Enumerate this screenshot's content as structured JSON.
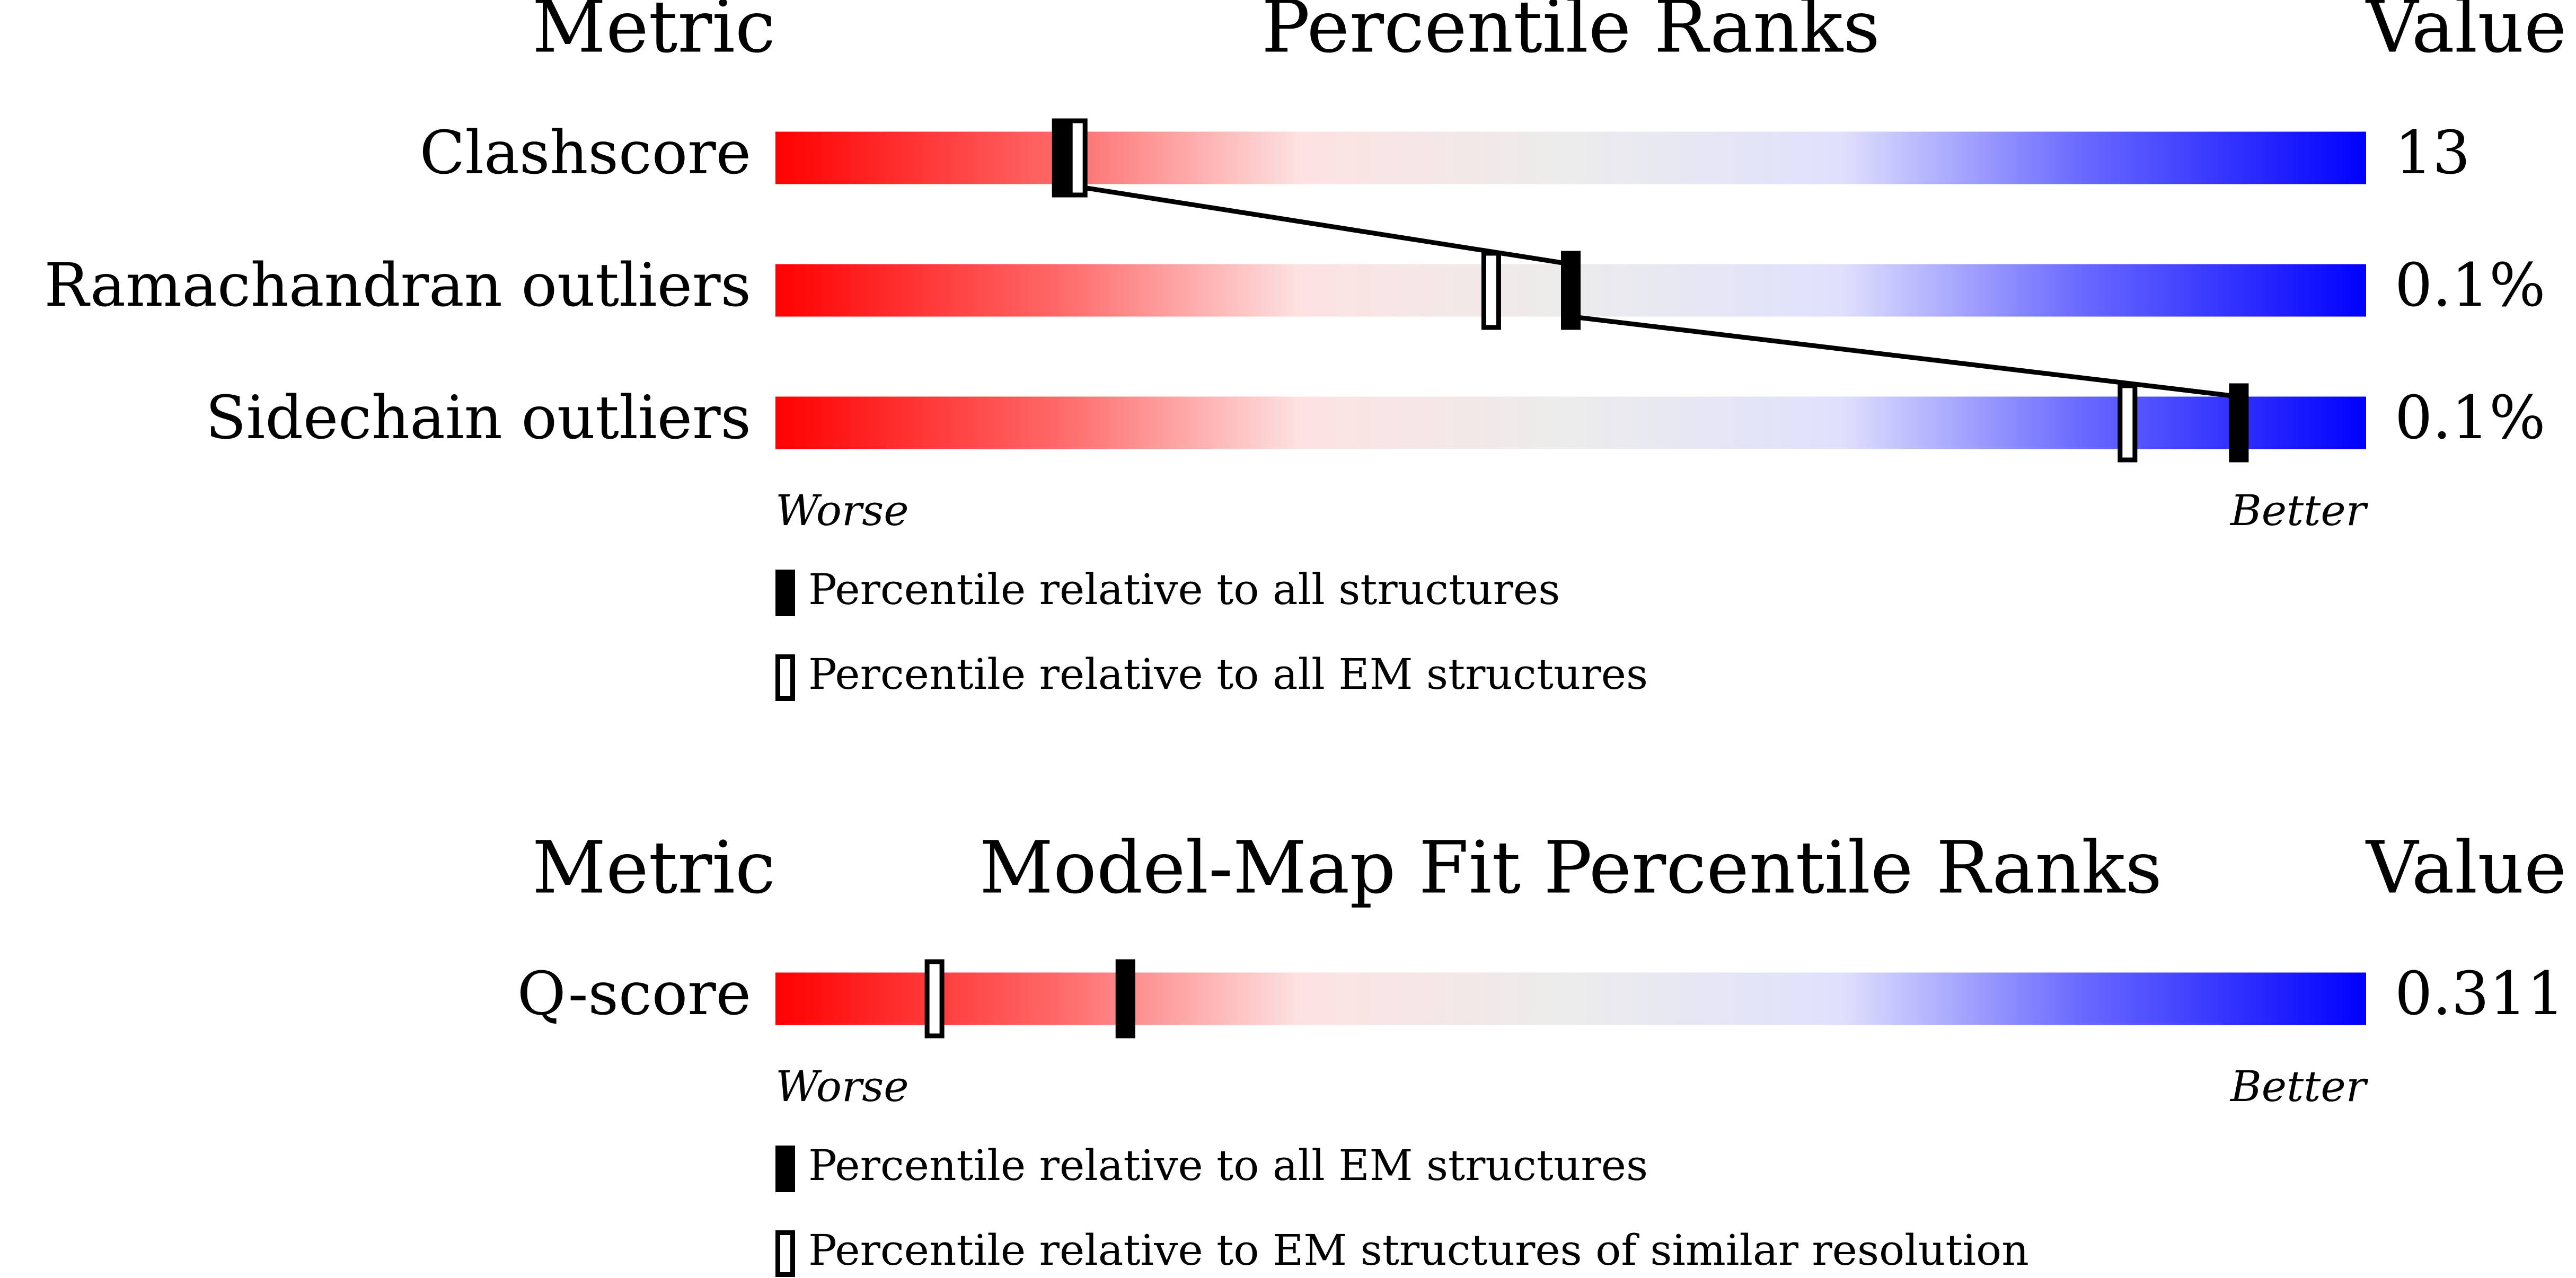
{
  "chart_data": [
    {
      "type": "percentile",
      "header": {
        "metric": "Metric",
        "title": "Percentile Ranks",
        "value": "Value"
      },
      "categories": [
        "Clashscore",
        "Ramachandran outliers",
        "Sidechain outliers"
      ],
      "printed_values": [
        "13",
        "0.1%",
        "0.1%"
      ],
      "xlim": [
        0,
        100
      ],
      "axis_labels": {
        "low": "Worse",
        "high": "Better"
      },
      "connect_filled": true,
      "series": [
        {
          "name": "Percentile relative to all structures",
          "style": "filled",
          "color": "#000000",
          "values": [
            18,
            50,
            92
          ]
        },
        {
          "name": "Percentile relative to all EM structures",
          "style": "hollow",
          "color": "#000000",
          "values": [
            19,
            45,
            85
          ]
        }
      ]
    },
    {
      "type": "percentile",
      "header": {
        "metric": "Metric",
        "title": "Model-Map Fit Percentile Ranks",
        "value": "Value"
      },
      "categories": [
        "Q-score"
      ],
      "printed_values": [
        "0.311"
      ],
      "xlim": [
        0,
        100
      ],
      "axis_labels": {
        "low": "Worse",
        "high": "Better"
      },
      "connect_filled": true,
      "series": [
        {
          "name": "Percentile relative to all EM structures",
          "style": "filled",
          "color": "#000000",
          "values": [
            22
          ]
        },
        {
          "name": "Percentile relative to EM structures of similar resolution",
          "style": "hollow",
          "color": "#000000",
          "values": [
            10
          ]
        }
      ]
    }
  ]
}
